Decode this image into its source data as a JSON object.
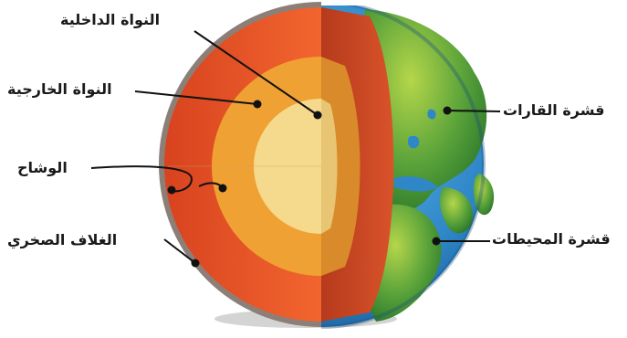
{
  "diagram": {
    "labels": {
      "inner_core": "النواة الداخلية",
      "outer_core": "النواة الخارجية",
      "mantle": "الوشاح",
      "lithosphere": "الغلاف الصخري",
      "continental_crust": "قشرة القارات",
      "oceanic_crust": "قشرة المحيطات"
    },
    "colors": {
      "mantle": "#e9502a",
      "outer_core": "#f0a133",
      "inner_core": "#f5d98c",
      "ocean": "#2f87c8",
      "land": "#5aa33a",
      "crust_rim": "#8c7f78",
      "leader_line": "#111111"
    }
  }
}
